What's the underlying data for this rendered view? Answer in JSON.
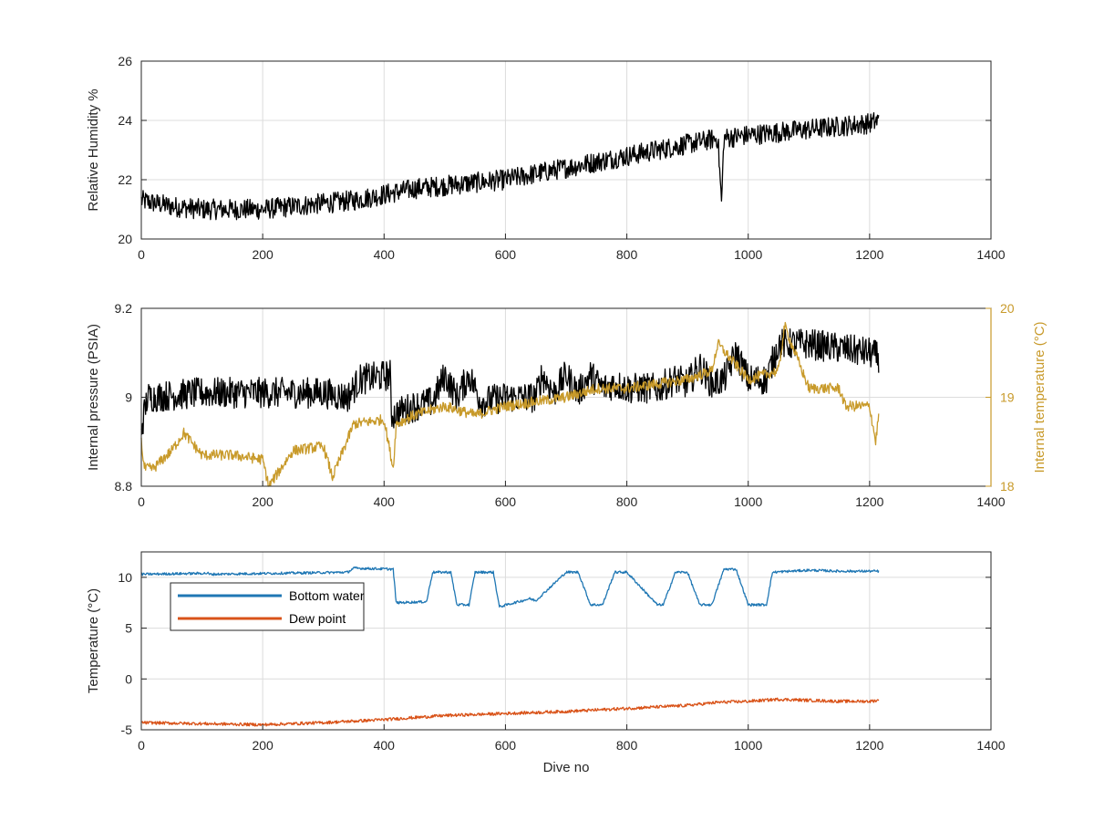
{
  "chart_data": [
    {
      "type": "line",
      "title": "",
      "xlabel": "",
      "ylabel": "Relative Humidity %",
      "xlim": [
        0,
        1400
      ],
      "ylim": [
        20,
        26
      ],
      "xticks": [
        0,
        200,
        400,
        600,
        800,
        1000,
        1200,
        1400
      ],
      "xtick_labels": [
        "0",
        "200",
        "400",
        "600",
        "800",
        "1000",
        "1200",
        "1400"
      ],
      "yticks": [
        20,
        22,
        24,
        26
      ],
      "ytick_labels": [
        "20",
        "22",
        "24",
        "26"
      ],
      "grid": true,
      "series": [
        {
          "color": "#000000",
          "noise": 0.35,
          "x": [
            0,
            50,
            100,
            150,
            200,
            250,
            300,
            350,
            400,
            450,
            500,
            550,
            600,
            650,
            700,
            750,
            800,
            850,
            900,
            950,
            956,
            960,
            1000,
            1050,
            1100,
            1150,
            1200,
            1215
          ],
          "y": [
            21.3,
            21.1,
            21.0,
            21.0,
            21.0,
            21.1,
            21.2,
            21.3,
            21.5,
            21.7,
            21.8,
            21.9,
            22.0,
            22.2,
            22.4,
            22.6,
            22.8,
            23.0,
            23.2,
            23.4,
            21.2,
            23.4,
            23.5,
            23.6,
            23.7,
            23.8,
            23.9,
            24.0
          ]
        }
      ]
    },
    {
      "type": "line",
      "title": "",
      "xlabel": "",
      "ylabel": "Internal pressure (PSIA)",
      "ylabel_right": "Internal temperature (°C)",
      "xlim": [
        0,
        1400
      ],
      "ylim": [
        8.8,
        9.2
      ],
      "ylim_right": [
        18,
        20
      ],
      "xticks": [
        0,
        200,
        400,
        600,
        800,
        1000,
        1200,
        1400
      ],
      "xtick_labels": [
        "0",
        "200",
        "400",
        "600",
        "800",
        "1000",
        "1200",
        "1400"
      ],
      "yticks": [
        8.8,
        9.0,
        9.2
      ],
      "ytick_labels": [
        "8.8",
        "9",
        "9.2"
      ],
      "yticks_right": [
        18,
        19,
        20
      ],
      "ytick_labels_right": [
        "18",
        "19",
        "20"
      ],
      "right_axis_color": "#c89a2a",
      "grid": true,
      "series": [
        {
          "axis": "left",
          "color": "#000000",
          "noise": 0.035,
          "x": [
            0,
            10,
            100,
            200,
            300,
            340,
            360,
            410,
            412,
            450,
            480,
            500,
            520,
            540,
            560,
            600,
            650,
            660,
            680,
            700,
            720,
            740,
            760,
            780,
            800,
            850,
            880,
            900,
            920,
            940,
            960,
            980,
            1000,
            1030,
            1050,
            1100,
            1150,
            1200,
            1215
          ],
          "y": [
            8.93,
            9.0,
            9.01,
            9.01,
            9.01,
            9.0,
            9.04,
            9.05,
            8.96,
            8.98,
            8.99,
            9.05,
            9.0,
            9.05,
            8.99,
            9.0,
            9.0,
            9.05,
            9.01,
            9.05,
            9.01,
            9.05,
            9.02,
            9.03,
            9.02,
            9.02,
            9.04,
            9.03,
            9.07,
            9.03,
            9.04,
            9.1,
            9.04,
            9.04,
            9.12,
            9.12,
            9.11,
            9.1,
            9.09
          ]
        },
        {
          "axis": "right",
          "color": "#c89a2a",
          "noise": 0.06,
          "x": [
            0,
            5,
            20,
            50,
            70,
            100,
            150,
            200,
            210,
            250,
            300,
            315,
            350,
            400,
            415,
            420,
            450,
            500,
            550,
            600,
            650,
            700,
            750,
            800,
            850,
            900,
            940,
            950,
            1000,
            1050,
            1060,
            1100,
            1150,
            1160,
            1200,
            1210,
            1215
          ],
          "y": [
            18.5,
            18.2,
            18.2,
            18.4,
            18.6,
            18.35,
            18.35,
            18.3,
            18.0,
            18.4,
            18.45,
            18.1,
            18.7,
            18.75,
            18.2,
            18.7,
            18.8,
            18.9,
            18.8,
            18.9,
            18.95,
            19.0,
            19.1,
            19.1,
            19.15,
            19.2,
            19.3,
            19.6,
            19.2,
            19.3,
            19.8,
            19.1,
            19.1,
            18.9,
            18.9,
            18.5,
            18.8
          ]
        }
      ]
    },
    {
      "type": "line",
      "title": "",
      "xlabel": "Dive no",
      "ylabel": "Temperature (°C)",
      "xlim": [
        0,
        1400
      ],
      "ylim": [
        -5,
        12.5
      ],
      "xticks": [
        0,
        200,
        400,
        600,
        800,
        1000,
        1200,
        1400
      ],
      "xtick_labels": [
        "0",
        "200",
        "400",
        "600",
        "800",
        "1000",
        "1200",
        "1400"
      ],
      "yticks": [
        -5,
        0,
        5,
        10
      ],
      "ytick_labels": [
        "-5",
        "0",
        "5",
        "10"
      ],
      "grid": true,
      "legend": "top-left",
      "series": [
        {
          "name": "Bottom water",
          "color": "#1f77b4",
          "noise": 0.12,
          "x": [
            0,
            110,
            112,
            340,
            350,
            415,
            420,
            470,
            480,
            510,
            520,
            540,
            550,
            580,
            590,
            640,
            650,
            700,
            720,
            740,
            760,
            780,
            800,
            850,
            860,
            880,
            900,
            920,
            940,
            960,
            980,
            1000,
            1030,
            1040,
            1100,
            1150,
            1200,
            1215
          ],
          "y": [
            10.3,
            10.4,
            10.3,
            10.5,
            10.9,
            10.8,
            7.5,
            7.6,
            10.5,
            10.5,
            7.3,
            7.3,
            10.5,
            10.5,
            7.1,
            7.9,
            7.7,
            10.5,
            10.5,
            7.3,
            7.3,
            10.5,
            10.5,
            7.3,
            7.3,
            10.5,
            10.5,
            7.3,
            7.3,
            10.8,
            10.8,
            7.3,
            7.3,
            10.5,
            10.7,
            10.6,
            10.6,
            10.6
          ]
        },
        {
          "name": "Dew point",
          "color": "#d95319",
          "noise": 0.15,
          "x": [
            0,
            100,
            200,
            300,
            400,
            500,
            600,
            700,
            800,
            900,
            950,
            1000,
            1050,
            1100,
            1150,
            1200,
            1215
          ],
          "y": [
            -4.3,
            -4.4,
            -4.5,
            -4.3,
            -4.0,
            -3.6,
            -3.4,
            -3.2,
            -2.9,
            -2.6,
            -2.3,
            -2.2,
            -2.0,
            -2.1,
            -2.2,
            -2.2,
            -2.1
          ]
        }
      ]
    }
  ]
}
